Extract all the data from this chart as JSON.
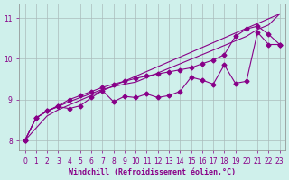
{
  "xlabel": "Windchill (Refroidissement éolien,°C)",
  "ylabel": "",
  "bg_color": "#cff0eb",
  "line_color": "#880088",
  "xlim": [
    -0.5,
    23.5
  ],
  "ylim": [
    7.75,
    11.35
  ],
  "yticks": [
    8,
    9,
    10,
    11
  ],
  "xticks": [
    0,
    1,
    2,
    3,
    4,
    5,
    6,
    7,
    8,
    9,
    10,
    11,
    12,
    13,
    14,
    15,
    16,
    17,
    18,
    19,
    20,
    21,
    22,
    23
  ],
  "series": [
    {
      "x": [
        0,
        1,
        2,
        3,
        23
      ],
      "y": [
        8.0,
        8.3,
        8.6,
        8.75,
        11.1
      ],
      "has_markers": false
    },
    {
      "x": [
        0,
        1,
        2,
        3,
        4,
        5,
        6,
        7,
        8,
        9,
        10,
        20,
        21,
        22,
        23
      ],
      "y": [
        8.0,
        8.55,
        8.72,
        8.83,
        8.95,
        9.05,
        9.15,
        9.25,
        9.32,
        9.38,
        9.43,
        10.55,
        10.72,
        10.83,
        11.1
      ],
      "has_markers": false
    },
    {
      "x": [
        0,
        1,
        2,
        3,
        4,
        5,
        6,
        7,
        8,
        9,
        10,
        11,
        12,
        13,
        14,
        15,
        16,
        17,
        18,
        19,
        20,
        21,
        22,
        23
      ],
      "y": [
        8.0,
        8.55,
        8.72,
        8.85,
        9.0,
        9.1,
        9.2,
        9.3,
        9.38,
        9.45,
        9.52,
        9.58,
        9.63,
        9.68,
        9.73,
        9.78,
        9.88,
        9.97,
        10.1,
        10.55,
        10.73,
        10.8,
        10.6,
        10.35
      ],
      "has_markers": true
    },
    {
      "x": [
        0,
        1,
        2,
        3,
        4,
        5,
        6,
        7,
        8,
        9,
        10,
        11,
        12,
        13,
        14,
        15,
        16,
        17,
        18,
        19,
        20,
        21,
        22,
        23
      ],
      "y": [
        8.0,
        8.55,
        8.72,
        8.83,
        8.78,
        8.85,
        9.05,
        9.22,
        8.95,
        9.08,
        9.05,
        9.14,
        9.05,
        9.1,
        9.2,
        9.55,
        9.48,
        9.38,
        9.85,
        9.4,
        9.45,
        10.65,
        10.35,
        10.35
      ],
      "has_markers": true
    }
  ],
  "grid_color": "#aabbbb",
  "tick_fontsize": 5.5,
  "label_fontsize": 6,
  "label_color": "#880088",
  "tick_color": "#880088",
  "spine_color": "#888888"
}
